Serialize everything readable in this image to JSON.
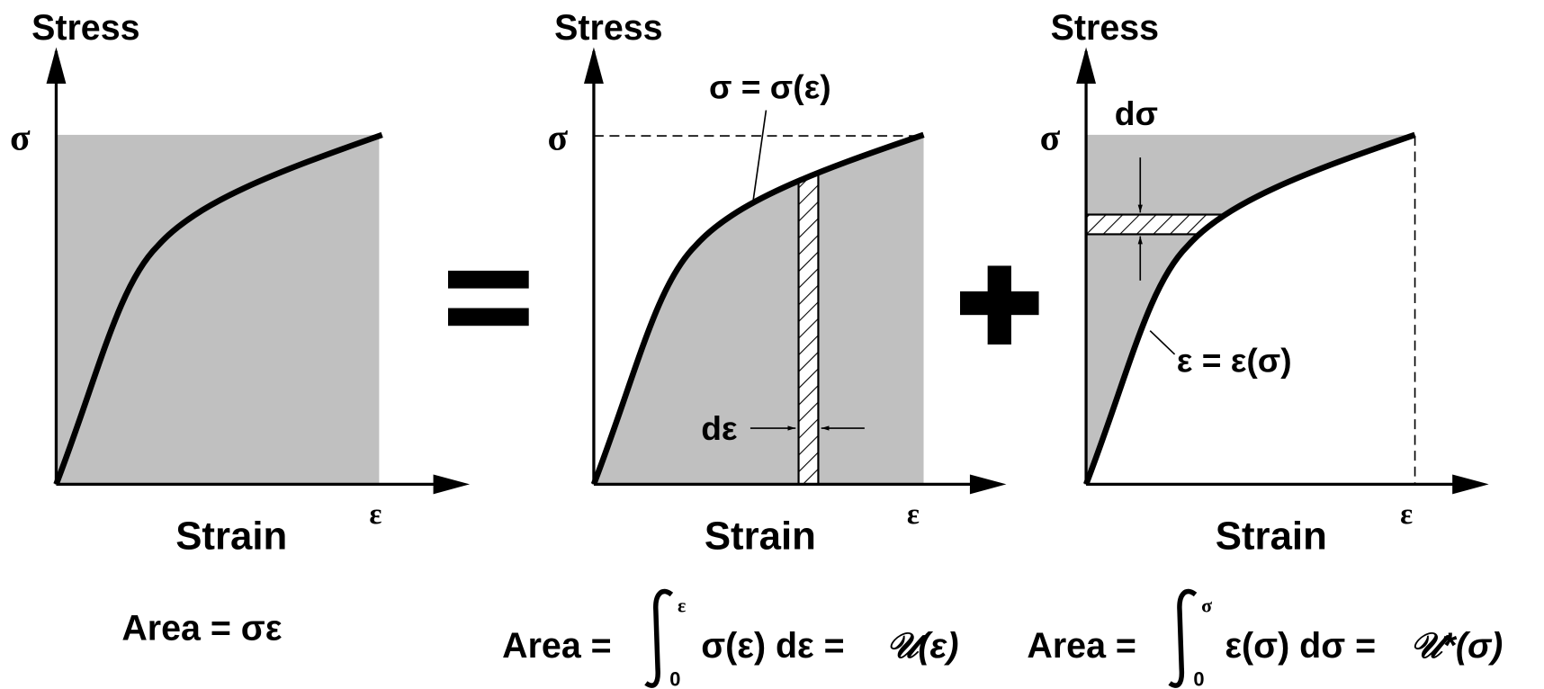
{
  "panels": [
    {
      "y_axis_label": "Stress",
      "y_value": "σ",
      "x_value": "ε",
      "x_axis_label": "Strain",
      "caption": "Area = σε"
    },
    {
      "y_axis_label": "Stress",
      "y_value": "σ",
      "x_value": "ε",
      "x_axis_label": "Strain",
      "curve_label": "σ = σ(ε)",
      "increment_label": "dε",
      "caption": {
        "lead": "Area =",
        "lower": "0",
        "upper": "ε",
        "integrand": "σ(ε) dε =",
        "result": "𝒰(ε)"
      }
    },
    {
      "y_axis_label": "Stress",
      "y_value": "σ",
      "x_value": "ε",
      "x_axis_label": "Strain",
      "curve_label": "ε = ε(σ)",
      "increment_label": "dσ",
      "caption": {
        "lead": "Area =",
        "lower": "0",
        "upper": "σ",
        "integrand": "ε(σ) dσ =",
        "result": "𝒰*(σ)"
      }
    }
  ]
}
